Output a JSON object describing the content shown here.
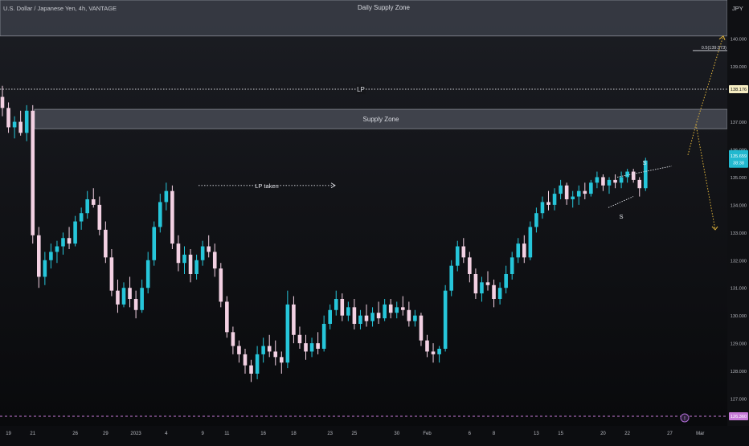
{
  "header": {
    "symbol_line": "U.S. Dollar / Japanese Yen, 4h, VANTAGE",
    "currency": "JPY"
  },
  "chart_data": {
    "type": "candlestick",
    "symbol": "U.S. Dollar / Japanese Yen",
    "timeframe": "4h",
    "broker": "VANTAGE",
    "y_unit": "JPY",
    "ylim": [
      126.1,
      141.4
    ],
    "y_ticks": [
      127.0,
      128.0,
      129.0,
      130.0,
      131.0,
      132.0,
      133.0,
      134.0,
      135.0,
      136.0,
      137.0,
      139.0,
      140.0
    ],
    "x_labels": [
      "19",
      "21",
      "26",
      "29",
      "2023",
      "4",
      "9",
      "11",
      "16",
      "18",
      "23",
      "25",
      "30",
      "Feb",
      "6",
      "8",
      "13",
      "15",
      "20",
      "22",
      "27",
      "Mar"
    ],
    "x_label_positions": [
      1,
      5,
      12,
      17,
      22,
      27,
      33,
      37,
      43,
      48,
      54,
      58,
      65,
      70,
      77,
      81,
      88,
      92,
      99,
      103,
      110,
      115
    ],
    "zones": [
      {
        "label": "Daily Supply Zone",
        "low": 140.1,
        "high": 141.4
      },
      {
        "label": "Supply Zone",
        "low": 136.75,
        "high": 137.45
      }
    ],
    "levels": [
      {
        "label": "LP",
        "price": 138.176
      },
      {
        "label": "",
        "price": 126.36
      }
    ],
    "annotations": {
      "lp_taken": "LP taken",
      "s_top": "S",
      "s_bottom": "S",
      "fib": "0.5(139.573)",
      "fib_price": 139.573,
      "event_badge": "!"
    },
    "price_labels": {
      "lp": "138.176",
      "current": "135.659",
      "countdown": "38:38",
      "low": "126.360"
    },
    "current_price": 135.659,
    "ohlc": [
      [
        137.9,
        138.3,
        137.2,
        137.5
      ],
      [
        137.5,
        137.7,
        136.6,
        136.8
      ],
      [
        136.8,
        137.2,
        136.4,
        137.0
      ],
      [
        137.0,
        137.4,
        136.5,
        136.6
      ],
      [
        136.6,
        137.6,
        136.3,
        137.4
      ],
      [
        137.4,
        137.6,
        132.6,
        132.9
      ],
      [
        132.9,
        133.2,
        131.0,
        131.4
      ],
      [
        131.4,
        132.3,
        131.1,
        132.0
      ],
      [
        132.0,
        132.6,
        131.7,
        132.3
      ],
      [
        132.3,
        132.7,
        131.9,
        132.5
      ],
      [
        132.5,
        133.0,
        132.2,
        132.8
      ],
      [
        132.8,
        133.2,
        132.4,
        132.6
      ],
      [
        132.6,
        133.6,
        132.5,
        133.4
      ],
      [
        133.4,
        133.9,
        133.1,
        133.7
      ],
      [
        133.7,
        134.5,
        133.5,
        134.2
      ],
      [
        134.2,
        134.6,
        133.9,
        134.0
      ],
      [
        134.0,
        134.3,
        132.9,
        133.1
      ],
      [
        133.1,
        133.4,
        131.9,
        132.1
      ],
      [
        132.1,
        132.4,
        130.7,
        130.9
      ],
      [
        130.9,
        131.3,
        130.1,
        130.4
      ],
      [
        130.4,
        131.2,
        130.3,
        131.0
      ],
      [
        131.0,
        131.4,
        130.3,
        130.6
      ],
      [
        130.6,
        130.9,
        129.9,
        130.2
      ],
      [
        130.2,
        131.3,
        130.1,
        131.0
      ],
      [
        131.0,
        132.3,
        130.8,
        132.0
      ],
      [
        132.0,
        133.4,
        131.8,
        133.2
      ],
      [
        133.2,
        134.4,
        133.0,
        134.1
      ],
      [
        134.1,
        134.8,
        133.8,
        134.5
      ],
      [
        134.5,
        134.7,
        132.4,
        132.6
      ],
      [
        132.6,
        132.9,
        131.6,
        131.9
      ],
      [
        131.9,
        132.5,
        131.5,
        132.2
      ],
      [
        132.2,
        132.4,
        131.2,
        131.5
      ],
      [
        131.5,
        132.2,
        131.3,
        132.0
      ],
      [
        132.0,
        132.7,
        131.8,
        132.5
      ],
      [
        132.5,
        132.9,
        132.1,
        132.3
      ],
      [
        132.3,
        132.6,
        131.4,
        131.7
      ],
      [
        131.7,
        131.9,
        130.3,
        130.5
      ],
      [
        130.5,
        130.7,
        129.2,
        129.4
      ],
      [
        129.4,
        129.6,
        128.6,
        128.9
      ],
      [
        128.9,
        129.1,
        128.3,
        128.6
      ],
      [
        128.6,
        128.8,
        127.9,
        128.2
      ],
      [
        128.2,
        128.4,
        127.6,
        127.9
      ],
      [
        127.9,
        128.9,
        127.7,
        128.6
      ],
      [
        128.6,
        129.2,
        128.3,
        128.9
      ],
      [
        128.9,
        129.3,
        128.5,
        128.7
      ],
      [
        128.7,
        129.1,
        128.2,
        128.5
      ],
      [
        128.5,
        128.7,
        127.9,
        128.3
      ],
      [
        128.3,
        130.9,
        128.1,
        130.4
      ],
      [
        130.4,
        130.7,
        129.0,
        129.3
      ],
      [
        129.3,
        129.6,
        128.8,
        129.0
      ],
      [
        129.0,
        129.3,
        128.4,
        128.7
      ],
      [
        128.7,
        129.2,
        128.5,
        129.0
      ],
      [
        129.0,
        129.4,
        128.6,
        128.8
      ],
      [
        128.8,
        130.0,
        128.7,
        129.7
      ],
      [
        129.7,
        130.4,
        129.5,
        130.2
      ],
      [
        130.2,
        130.9,
        130.0,
        130.6
      ],
      [
        130.6,
        130.8,
        129.8,
        130.0
      ],
      [
        130.0,
        130.5,
        129.8,
        130.3
      ],
      [
        130.3,
        130.6,
        129.5,
        129.7
      ],
      [
        129.7,
        130.2,
        129.5,
        130.0
      ],
      [
        130.0,
        130.4,
        129.6,
        129.8
      ],
      [
        129.8,
        130.3,
        129.6,
        130.1
      ],
      [
        130.1,
        130.5,
        129.7,
        129.9
      ],
      [
        129.9,
        130.6,
        129.8,
        130.4
      ],
      [
        130.4,
        130.6,
        129.9,
        130.1
      ],
      [
        130.1,
        130.5,
        129.9,
        130.3
      ],
      [
        130.3,
        130.7,
        130.0,
        130.2
      ],
      [
        130.2,
        130.5,
        129.6,
        129.8
      ],
      [
        129.8,
        130.2,
        129.6,
        130.0
      ],
      [
        130.0,
        130.1,
        128.9,
        129.1
      ],
      [
        129.1,
        129.3,
        128.5,
        128.7
      ],
      [
        128.7,
        129.0,
        128.3,
        128.6
      ],
      [
        128.6,
        128.9,
        128.3,
        128.8
      ],
      [
        128.8,
        131.1,
        128.7,
        130.9
      ],
      [
        130.9,
        132.0,
        130.7,
        131.8
      ],
      [
        131.8,
        132.7,
        131.6,
        132.5
      ],
      [
        132.5,
        132.8,
        131.9,
        132.1
      ],
      [
        132.1,
        132.3,
        131.2,
        131.5
      ],
      [
        131.5,
        131.7,
        130.6,
        130.8
      ],
      [
        130.8,
        131.4,
        130.5,
        131.2
      ],
      [
        131.2,
        131.6,
        130.9,
        131.1
      ],
      [
        131.1,
        131.3,
        130.3,
        130.6
      ],
      [
        130.6,
        131.2,
        130.4,
        131.0
      ],
      [
        131.0,
        131.8,
        130.8,
        131.5
      ],
      [
        131.5,
        132.3,
        131.3,
        132.1
      ],
      [
        132.1,
        132.8,
        131.9,
        132.6
      ],
      [
        132.6,
        132.9,
        131.9,
        132.1
      ],
      [
        132.1,
        133.4,
        132.0,
        133.2
      ],
      [
        133.2,
        133.9,
        133.0,
        133.7
      ],
      [
        133.7,
        134.3,
        133.5,
        134.1
      ],
      [
        134.1,
        134.5,
        133.8,
        134.0
      ],
      [
        134.0,
        134.6,
        133.8,
        134.4
      ],
      [
        134.4,
        134.9,
        134.2,
        134.7
      ],
      [
        134.7,
        134.8,
        134.0,
        134.2
      ],
      [
        134.2,
        134.5,
        133.9,
        134.3
      ],
      [
        134.3,
        134.7,
        134.0,
        134.5
      ],
      [
        134.5,
        134.8,
        134.2,
        134.4
      ],
      [
        134.4,
        134.9,
        134.3,
        134.8
      ],
      [
        134.8,
        135.2,
        134.6,
        135.0
      ],
      [
        135.0,
        135.1,
        134.5,
        134.7
      ],
      [
        134.7,
        135.0,
        134.4,
        134.9
      ],
      [
        134.9,
        135.1,
        134.6,
        134.8
      ],
      [
        134.8,
        135.2,
        134.6,
        135.0
      ],
      [
        135.0,
        135.3,
        134.8,
        135.2
      ],
      [
        135.2,
        135.3,
        134.8,
        134.9
      ],
      [
        134.9,
        135.0,
        134.3,
        134.6
      ],
      [
        134.6,
        135.7,
        134.5,
        135.6
      ]
    ]
  }
}
